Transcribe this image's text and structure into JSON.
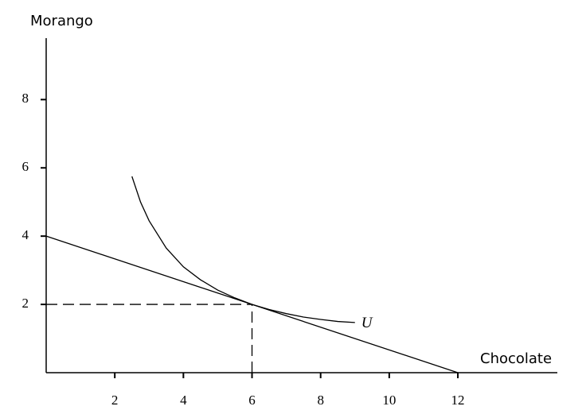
{
  "chart_data": {
    "type": "line",
    "ylabel": "Morango",
    "xlabel": "Chocolate",
    "xlim": [
      0,
      14.9
    ],
    "ylim": [
      0,
      9.8
    ],
    "xticks": [
      2,
      4,
      6,
      8,
      10,
      12
    ],
    "yticks": [
      2,
      4,
      6,
      8
    ],
    "color": "#000000",
    "series": [
      {
        "name": "U",
        "color": "#000000",
        "x": [
          2.5,
          2.75,
          3,
          3.5,
          4,
          4.5,
          5,
          5.5,
          6,
          6.5,
          7,
          7.5,
          8,
          8.5,
          9
        ],
        "values": [
          5.75,
          5.0,
          4.45,
          3.65,
          3.1,
          2.72,
          2.42,
          2.19,
          2,
          1.85,
          1.73,
          1.63,
          1.56,
          1.5,
          1.47
        ]
      },
      {
        "color": "#000000",
        "x": [
          0,
          12
        ],
        "values": [
          4,
          0
        ]
      }
    ],
    "reference_lines": [
      {
        "x": [
          0,
          6
        ],
        "values": [
          2,
          2
        ]
      },
      {
        "x": [
          6,
          6
        ],
        "values": [
          0,
          2
        ]
      }
    ]
  }
}
